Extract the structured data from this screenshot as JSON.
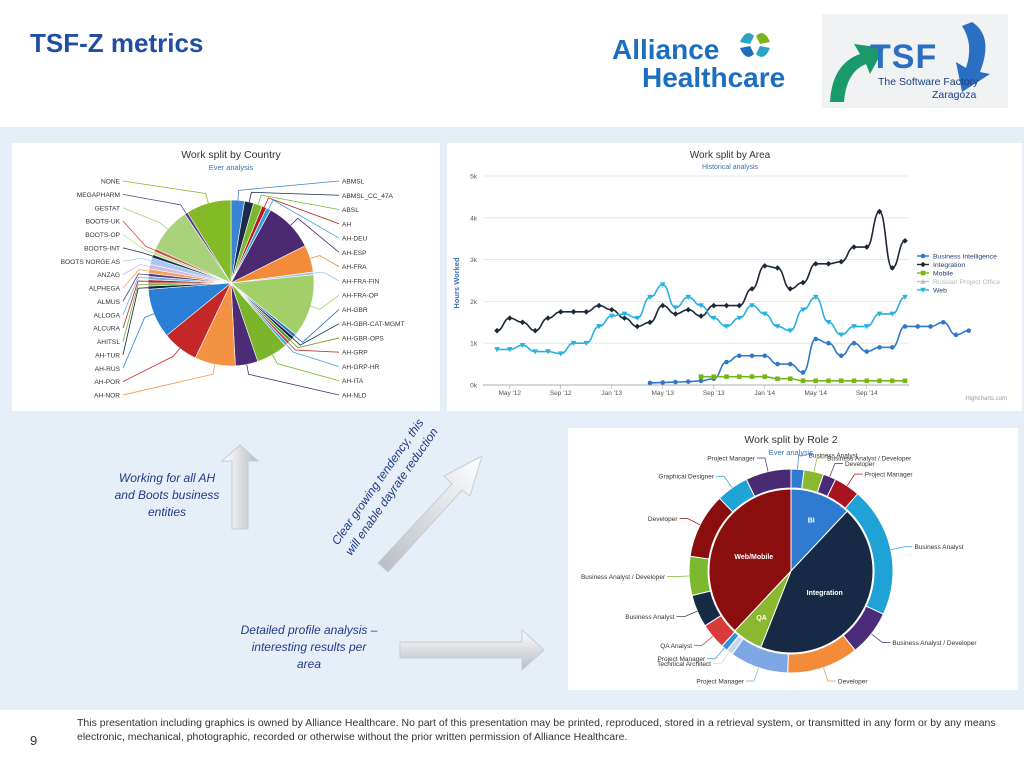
{
  "slide": {
    "title": "TSF-Z metrics",
    "page_number": "9",
    "footer": "This presentation including graphics is owned by Alliance Healthcare. No part of this presentation may be printed, reproduced, stored in a retrieval system, or transmitted in any form or by any means electronic, mechanical, photographic, recorded or otherwise without the prior written permission of Alliance Healthcare.",
    "logos": {
      "alliance_line1": "Alliance",
      "alliance_line2": "Healthcare",
      "tsf_big": "TSF",
      "tsf_line1": "The Software Factory",
      "tsf_line2": "Zaragoza"
    },
    "notes": {
      "boots": "Working for all AH and Boots business entities",
      "trend": "Clear growing tendency, this will enable dayrate reduction",
      "profile": "Detailed profile analysis – interesting results per area"
    },
    "colors": {
      "title": "#1f4ea3",
      "band": "#e6eef7",
      "note": "#1f3b8a"
    }
  },
  "chart_data": [
    {
      "type": "pie",
      "title": "Work split by Country",
      "subtitle": "Ever analysis",
      "slices": [
        {
          "label": "ABMSL",
          "value": 3,
          "color": "#3a84d6"
        },
        {
          "label": "ABMSL_CC_47A",
          "value": 2,
          "color": "#1a2b48"
        },
        {
          "label": "ABSL",
          "value": 2,
          "color": "#7cb82f"
        },
        {
          "label": "AH",
          "value": 1,
          "color": "#b51d1d"
        },
        {
          "label": "AH-DEU",
          "value": 1,
          "color": "#3b9fd8"
        },
        {
          "label": "AH-ESP",
          "value": 11,
          "color": "#4b2a72"
        },
        {
          "label": "AH-FRA",
          "value": 6,
          "color": "#f28c3a"
        },
        {
          "label": "AH-FRA-FIN",
          "value": 0.6,
          "color": "#a0c4ec"
        },
        {
          "label": "AH-FRA-OP",
          "value": 14,
          "color": "#a3cf6b"
        },
        {
          "label": "AH-GBR",
          "value": 0.7,
          "color": "#2f6fc2"
        },
        {
          "label": "AH-GBR-CAT-MGMT",
          "value": 0.7,
          "color": "#152a4f"
        },
        {
          "label": "AH-GBR-OPS",
          "value": 0.7,
          "color": "#5d9a23"
        },
        {
          "label": "AH-GRP",
          "value": 0.6,
          "color": "#c43a3a"
        },
        {
          "label": "AH-GRP-HR",
          "value": 0.6,
          "color": "#3aa5e0"
        },
        {
          "label": "AH-ITA",
          "value": 7,
          "color": "#7ab52a"
        },
        {
          "label": "AH-NLD",
          "value": 5,
          "color": "#4c2c75"
        },
        {
          "label": "AH-NOR",
          "value": 9,
          "color": "#f49244"
        },
        {
          "label": "AH-POR",
          "value": 8,
          "color": "#c42727"
        },
        {
          "label": "AH-RUS",
          "value": 11,
          "color": "#2b7fd6"
        },
        {
          "label": "AH-TUR",
          "value": 0.7,
          "color": "#13264a"
        },
        {
          "label": "AHITSL",
          "value": 0.7,
          "color": "#79b33b"
        },
        {
          "label": "ALCURA",
          "value": 0.7,
          "color": "#b02a2a"
        },
        {
          "label": "ALLOGA",
          "value": 0.7,
          "color": "#6fb4e8"
        },
        {
          "label": "ALMUS",
          "value": 0.7,
          "color": "#5b3a86"
        },
        {
          "label": "ALPHEGA",
          "value": 1,
          "color": "#f2a35d"
        },
        {
          "label": "ANZAG",
          "value": 1,
          "color": "#d2b8e5"
        },
        {
          "label": "BOOTS NORGE AS",
          "value": 1.5,
          "color": "#a9c8ee"
        },
        {
          "label": "BOOTS-INT",
          "value": 0.7,
          "color": "#1c3159"
        },
        {
          "label": "BOOTS-OP",
          "value": 0.7,
          "color": "#c0dd95"
        },
        {
          "label": "BOOTS-UK",
          "value": 0.7,
          "color": "#d24a4a"
        },
        {
          "label": "GESTAT",
          "value": 10,
          "color": "#a8d37c"
        },
        {
          "label": "MEGAPHARM",
          "value": 0.7,
          "color": "#5b3d8a"
        },
        {
          "label": "NONE",
          "value": 10,
          "color": "#84b927"
        }
      ]
    },
    {
      "type": "line",
      "title": "Work split by Area",
      "subtitle": "Historical analysis",
      "ylabel": "Hours Worked",
      "ylim": [
        0,
        5000
      ],
      "yticks": [
        "0k",
        "1k",
        "2k",
        "3k",
        "4k",
        "5k"
      ],
      "xticks": [
        "May '12",
        "Sep '12",
        "Jan '13",
        "May '13",
        "Sep '13",
        "Jan '14",
        "May '14",
        "Sep '14"
      ],
      "credit": "Highcharts.com",
      "series": [
        {
          "name": "Business Intelligence",
          "color": "#2e78c8",
          "marker": "circle",
          "start": 12,
          "values": [
            50,
            60,
            70,
            80,
            100,
            150,
            550,
            700,
            700,
            700,
            500,
            500,
            300,
            1100,
            1000,
            700,
            1000,
            800,
            900,
            900,
            1400,
            1400,
            1400,
            1500,
            1200,
            1300
          ]
        },
        {
          "name": "Integration",
          "color": "#1c2838",
          "marker": "diamond",
          "start": 0,
          "values": [
            1300,
            1600,
            1500,
            1300,
            1600,
            1750,
            1750,
            1750,
            1900,
            1800,
            1600,
            1400,
            1500,
            1900,
            1700,
            1800,
            1650,
            1900,
            1900,
            1900,
            2300,
            2850,
            2800,
            2300,
            2450,
            2900,
            2900,
            2950,
            3300,
            3300,
            4150,
            2800,
            3450
          ]
        },
        {
          "name": "Mobile",
          "color": "#7ab51d",
          "marker": "square",
          "start": 16,
          "values": [
            200,
            200,
            200,
            200,
            200,
            200,
            150,
            150,
            100,
            100,
            100,
            100,
            100,
            100,
            100,
            100,
            100
          ]
        },
        {
          "name": "Russian Project Office",
          "color": "#b0c4d8",
          "marker": "triangle",
          "start": 0,
          "hidden": true,
          "values": []
        },
        {
          "name": "Web",
          "color": "#2bb1e0",
          "marker": "triangle-down",
          "start": 0,
          "values": [
            850,
            850,
            950,
            800,
            800,
            750,
            1000,
            1000,
            1400,
            1650,
            1700,
            1600,
            2100,
            2400,
            1850,
            2100,
            1900,
            1600,
            1400,
            1600,
            1900,
            1700,
            1400,
            1300,
            1800,
            2100,
            1500,
            1200,
            1400,
            1400,
            1700,
            1700,
            2100
          ]
        }
      ]
    },
    {
      "type": "sunburst",
      "title": "Work split by Role 2",
      "subtitle": "Ever analysis",
      "inner": [
        {
          "label": "BI",
          "value": 12,
          "color": "#2f7bd1"
        },
        {
          "label": "Integration",
          "value": 44,
          "color": "#172a45"
        },
        {
          "label": "QA",
          "value": 6,
          "color": "#8ab830"
        },
        {
          "label": "Web/Mobile",
          "value": 38,
          "color": "#8b0e0e"
        }
      ],
      "outer": [
        {
          "label": "Business Analyst",
          "value": 2,
          "color": "#2f7bd1",
          "sweep_color": "#5b9bde"
        },
        {
          "label": "Business Analyst / Developer",
          "value": 3,
          "color": "#8ab830"
        },
        {
          "label": "Developer",
          "value": 2,
          "color": "#4a2a75"
        },
        {
          "label": "Project Manager",
          "value": 4,
          "color": "#a7141f"
        },
        {
          "label": "Business Analyst",
          "value": 20,
          "color": "#1fa2d6"
        },
        {
          "label": "Business Analyst / Developer",
          "value": 7,
          "color": "#4a2c7a"
        },
        {
          "label": "Developer",
          "value": 11,
          "color": "#f28c3a"
        },
        {
          "label": "Project Manager",
          "value": 9,
          "color": "#7fa7e3"
        },
        {
          "label": "Technical Architect",
          "value": 1,
          "color": "#c8d8ec"
        },
        {
          "label": "Project Manager",
          "value": 1,
          "color": "#3a8fd9"
        },
        {
          "label": "QA Analyst",
          "value": 4,
          "color": "#d93a3a"
        },
        {
          "label": "Business Analyst",
          "value": 5,
          "color": "#172a45"
        },
        {
          "label": "Business Analyst / Developer",
          "value": 6,
          "color": "#7cb82f"
        },
        {
          "label": "Developer",
          "value": 10,
          "color": "#8b0e0e"
        },
        {
          "label": "Graphical Designer",
          "value": 5,
          "color": "#1fa2d6"
        },
        {
          "label": "Project Manager",
          "value": 7,
          "color": "#4a2a75"
        }
      ]
    }
  ]
}
